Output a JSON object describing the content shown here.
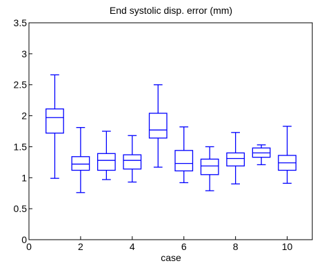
{
  "chart_data": {
    "type": "boxplot",
    "title": "End systolic disp. error (mm)",
    "xlabel": "case",
    "ylabel": "",
    "xlim": [
      0,
      11
    ],
    "ylim": [
      0,
      3.5
    ],
    "xticks": [
      "0",
      "2",
      "4",
      "6",
      "8",
      "10"
    ],
    "yticks": [
      "0",
      "0.5",
      "1",
      "1.5",
      "2",
      "2.5",
      "3",
      "3.5"
    ],
    "grid": false,
    "color": "#0000ff",
    "boxes": [
      {
        "x": 1,
        "whisker_low": 0.99,
        "q1": 1.72,
        "median": 1.97,
        "q3": 2.11,
        "whisker_high": 2.66
      },
      {
        "x": 2,
        "whisker_low": 0.76,
        "q1": 1.12,
        "median": 1.22,
        "q3": 1.34,
        "whisker_high": 1.81
      },
      {
        "x": 3,
        "whisker_low": 0.97,
        "q1": 1.12,
        "median": 1.28,
        "q3": 1.39,
        "whisker_high": 1.75
      },
      {
        "x": 4,
        "whisker_low": 0.93,
        "q1": 1.14,
        "median": 1.28,
        "q3": 1.37,
        "whisker_high": 1.68
      },
      {
        "x": 5,
        "whisker_low": 1.17,
        "q1": 1.64,
        "median": 1.77,
        "q3": 2.04,
        "whisker_high": 2.5
      },
      {
        "x": 6,
        "whisker_low": 0.92,
        "q1": 1.11,
        "median": 1.23,
        "q3": 1.44,
        "whisker_high": 1.82
      },
      {
        "x": 7,
        "whisker_low": 0.79,
        "q1": 1.05,
        "median": 1.19,
        "q3": 1.3,
        "whisker_high": 1.5
      },
      {
        "x": 8,
        "whisker_low": 0.9,
        "q1": 1.19,
        "median": 1.31,
        "q3": 1.4,
        "whisker_high": 1.73
      },
      {
        "x": 9,
        "whisker_low": 1.21,
        "q1": 1.33,
        "median": 1.4,
        "q3": 1.48,
        "whisker_high": 1.53
      },
      {
        "x": 10,
        "whisker_low": 0.91,
        "q1": 1.12,
        "median": 1.24,
        "q3": 1.36,
        "whisker_high": 1.83
      }
    ]
  }
}
